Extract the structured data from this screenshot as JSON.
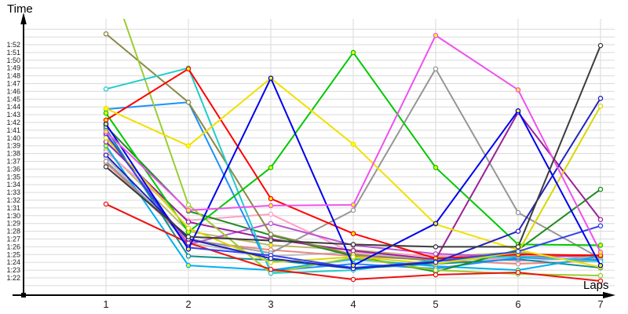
{
  "chart_data": {
    "type": "line",
    "title": "",
    "xlabel": "Laps",
    "ylabel": "Time",
    "x": [
      1,
      2,
      3,
      4,
      5,
      6,
      7
    ],
    "x_tick_labels": [
      "1",
      "2",
      "3",
      "4",
      "5",
      "6",
      "7"
    ],
    "y_tick_labels": [
      "1:52",
      "1:51",
      "1:50",
      "1:49",
      "1:48",
      "1:47",
      "1:46",
      "1:45",
      "1:44",
      "1:43",
      "1:42",
      "1:41",
      "1:40",
      "1:39",
      "1:38",
      "1:37",
      "1:36",
      "1:35",
      "1:34",
      "1:33",
      "1:32",
      "1:31",
      "1:30",
      "1:29",
      "1:28",
      "1:27",
      "1:26",
      "1:25",
      "1:24",
      "1:23",
      "1:22"
    ],
    "y_axis": {
      "unit": "minutes:seconds",
      "top_label_seconds": 112,
      "bottom_label_seconds": 82,
      "tick_step_seconds": 1
    },
    "grid": true,
    "legend_position": "none",
    "series": [
      {
        "name": "silver",
        "color": "#BFBFBF",
        "marker_fill": "white",
        "lap_times_seconds": [
          97.5,
          86.5,
          84.8,
          85.3,
          84.2,
          84.6,
          84.9
        ]
      },
      {
        "name": "khaki",
        "color": "#BDB76B",
        "marker_fill": "yellow",
        "lap_times_seconds": [
          98.5,
          88.0,
          86.2,
          85.6,
          84.7,
          85.3,
          84.4
        ]
      },
      {
        "name": "salmon",
        "color": "#E88888",
        "marker_fill": "white",
        "lap_times_seconds": [
          96.8,
          86.8,
          85.6,
          84.8,
          84.3,
          83.8,
          84.2
        ]
      },
      {
        "name": "pink",
        "color": "#FFA0C8",
        "marker_fill": "white",
        "lap_times_seconds": [
          98.2,
          89.4,
          90.2,
          85.2,
          84.9,
          84.2,
          84.6
        ]
      },
      {
        "name": "teal",
        "color": "#109090",
        "marker_fill": "white",
        "lap_times_seconds": [
          101.2,
          84.8,
          84.3,
          83.2,
          83.8,
          84.4,
          83.3
        ]
      },
      {
        "name": "sky-blue",
        "color": "#00B0F0",
        "marker_fill": "yellow",
        "lap_times_seconds": [
          99.0,
          83.6,
          83.0,
          84.4,
          83.5,
          83.0,
          84.8
        ]
      },
      {
        "name": "dodger-blue",
        "color": "#1E90FF",
        "marker_fill": "white",
        "lap_times_seconds": [
          103.7,
          104.6,
          82.9,
          83.8,
          83.2,
          84.6,
          84.3
        ]
      },
      {
        "name": "gray",
        "color": "#969696",
        "marker_fill": "white",
        "lap_times_seconds": [
          97.0,
          87.0,
          85.2,
          90.7,
          108.9,
          90.4,
          84.5
        ]
      },
      {
        "name": "forest-green",
        "color": "#1E8B1E",
        "marker_fill": "white",
        "lap_times_seconds": [
          101.5,
          90.6,
          87.5,
          84.8,
          82.8,
          85.6,
          93.4
        ]
      },
      {
        "name": "orchid",
        "color": "#BA55D3",
        "marker_fill": "white",
        "lap_times_seconds": [
          100.4,
          86.3,
          89.0,
          86.2,
          85.1,
          84.7,
          84.8
        ]
      },
      {
        "name": "purple",
        "color": "#992299",
        "marker_fill": "white",
        "lap_times_seconds": [
          99.5,
          89.2,
          87.0,
          85.5,
          84.4,
          103.3,
          89.5
        ]
      },
      {
        "name": "olive",
        "color": "#8A8A45",
        "marker_fill": "white",
        "lap_times_seconds": [
          113.4,
          104.6,
          87.6,
          85.0,
          84.2,
          85.1,
          84.8
        ]
      },
      {
        "name": "yellow-green",
        "color": "#9ACD32",
        "marker_fill": "white",
        "lap_times_seconds": [
          122.0,
          91.4,
          82.6,
          84.6,
          83.0,
          82.5,
          82.3
        ]
      },
      {
        "name": "cyan",
        "color": "#22CCCC",
        "marker_fill": "white",
        "lap_times_seconds": [
          106.3,
          109.0,
          82.6,
          83.0,
          84.3,
          84.8,
          84.1
        ]
      },
      {
        "name": "green",
        "color": "#00C800",
        "marker_fill": "yellow",
        "lap_times_seconds": [
          103.2,
          87.9,
          96.2,
          111.0,
          96.2,
          86.3,
          86.2
        ]
      },
      {
        "name": "red-2",
        "color": "#EE1111",
        "marker_fill": "white",
        "lap_times_seconds": [
          91.5,
          86.5,
          83.1,
          81.8,
          82.4,
          82.7,
          81.6
        ]
      },
      {
        "name": "red-1",
        "color": "#FF0000",
        "marker_fill": "yellow",
        "lap_times_seconds": [
          102.3,
          108.9,
          92.2,
          87.7,
          84.5,
          85.0,
          84.9
        ]
      },
      {
        "name": "yellow-2",
        "color": "#D8D800",
        "marker_fill": "white",
        "lap_times_seconds": [
          100.0,
          88.4,
          84.0,
          84.7,
          83.8,
          85.3,
          104.1
        ]
      },
      {
        "name": "yellow-1",
        "color": "#F0E000",
        "marker_fill": "yellow",
        "lap_times_seconds": [
          103.8,
          99.0,
          107.7,
          99.2,
          88.9,
          85.6,
          83.4
        ]
      },
      {
        "name": "blue-3",
        "color": "#3344EE",
        "marker_fill": "white",
        "lap_times_seconds": [
          100.6,
          85.9,
          84.9,
          83.3,
          84.1,
          85.4,
          88.7
        ]
      },
      {
        "name": "blue-2",
        "color": "#2222BB",
        "marker_fill": "white",
        "lap_times_seconds": [
          97.8,
          87.0,
          84.5,
          83.2,
          84.0,
          88.0,
          105.1
        ]
      },
      {
        "name": "blue-1",
        "color": "#0000EE",
        "marker_fill": "yellow",
        "lap_times_seconds": [
          101.8,
          85.7,
          107.7,
          83.6,
          89.0,
          103.5,
          83.6
        ]
      },
      {
        "name": "magenta",
        "color": "#EE52EE",
        "marker_fill": "yellow",
        "lap_times_seconds": [
          100.8,
          90.7,
          91.3,
          91.4,
          113.2,
          106.2,
          85.3
        ]
      },
      {
        "name": "dark-gray",
        "color": "#3C3C3C",
        "marker_fill": "white",
        "lap_times_seconds": [
          96.3,
          87.3,
          86.8,
          86.3,
          86.0,
          86.0,
          111.9
        ]
      }
    ],
    "colors": {
      "grid": "#DADADA",
      "axis": "#000000",
      "tick_text": "#1A1A1A",
      "marker_yellow_fill": "#FFFF00",
      "marker_white_fill": "#FFFFFF",
      "background": "#FFFFFF"
    }
  }
}
